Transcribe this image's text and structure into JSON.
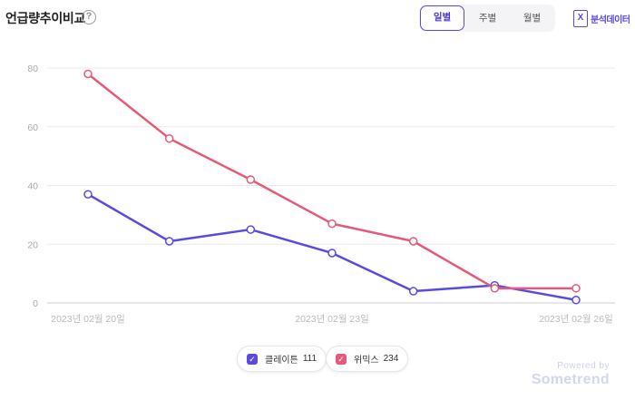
{
  "header": {
    "title": "언급량추이비교",
    "help_glyph": "?",
    "periods": [
      {
        "label": "일별",
        "active": true
      },
      {
        "label": "주별",
        "active": false
      },
      {
        "label": "월별",
        "active": false
      }
    ],
    "export_label": "분석데이터",
    "export_icon": "excel-icon",
    "export_glyph": "X"
  },
  "chart_data": {
    "type": "line",
    "title": "",
    "xlabel": "",
    "ylabel": "",
    "x": [
      "2023-02-20",
      "2023-02-21",
      "2023-02-22",
      "2023-02-23",
      "2023-02-24",
      "2023-02-25",
      "2023-02-26"
    ],
    "x_tick_labels": [
      {
        "index": 0,
        "label": "2023년 02월 20일"
      },
      {
        "index": 3,
        "label": "2023년 02월 23일"
      },
      {
        "index": 6,
        "label": "2023년 02월 26일"
      }
    ],
    "y_ticks": [
      0,
      20,
      40,
      60,
      80
    ],
    "ylim": [
      0,
      80
    ],
    "grid": true,
    "legend_position": "bottom-center",
    "series": [
      {
        "name": "클레이튼",
        "total": "111",
        "color": "#5a4be0",
        "values": [
          37,
          21,
          25,
          17,
          4,
          6,
          1
        ]
      },
      {
        "name": "위믹스",
        "total": "234",
        "color": "#e55a78",
        "values": [
          78,
          56,
          42,
          27,
          21,
          5,
          5
        ]
      }
    ]
  },
  "branding": {
    "powered_by": "Powered by",
    "name": "Sometrend"
  }
}
